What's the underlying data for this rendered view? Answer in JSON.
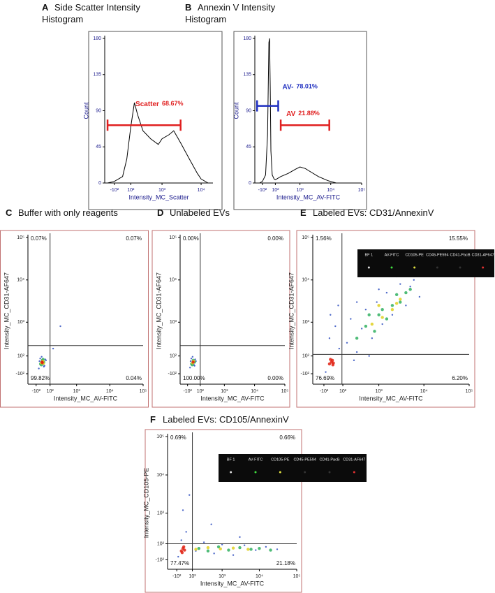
{
  "chart_data": [
    {
      "type": "line",
      "panel": "A",
      "title": "Side Scatter Intensity Histogram",
      "xlabel": "Intensity_MC_Scatter",
      "ylabel": "Count",
      "xscale": "biexponential",
      "x": [
        -200,
        -100,
        0,
        50,
        100,
        150,
        200,
        300,
        500,
        800,
        1000,
        1500,
        2000,
        3000,
        5000,
        8000,
        10000,
        15000
      ],
      "values": [
        0,
        2,
        8,
        30,
        70,
        100,
        85,
        65,
        55,
        48,
        55,
        60,
        65,
        50,
        30,
        12,
        5,
        0
      ],
      "color": "#000000",
      "xlim": [
        -250,
        20000
      ],
      "ylim": [
        0,
        180
      ],
      "xticks": [
        {
          "value": -100,
          "label": "-10²"
        },
        {
          "value": 100,
          "label": "10²"
        },
        {
          "value": 1000,
          "label": "10³"
        },
        {
          "value": 10000,
          "label": "10⁴"
        }
      ],
      "yticks": [
        0,
        45,
        90,
        135,
        180
      ],
      "gates": [
        {
          "name": "Scatter",
          "label": "68.67%",
          "value": 68.67,
          "range": [
            -200,
            3000
          ],
          "y": 72,
          "color": "#e02020"
        }
      ]
    },
    {
      "type": "line",
      "panel": "B",
      "title": "Annexin V Intensity Histogram",
      "xlabel": "Intensity_MC_AV-FITC",
      "ylabel": "Count",
      "xscale": "biexponential",
      "x": [
        -150,
        -100,
        -50,
        -20,
        0,
        10,
        20,
        30,
        50,
        80,
        100,
        200,
        400,
        700,
        1000,
        1500,
        2000,
        4000,
        8000,
        15000
      ],
      "values": [
        0,
        2,
        10,
        60,
        175,
        180,
        120,
        40,
        10,
        5,
        4,
        8,
        12,
        17,
        20,
        18,
        15,
        8,
        3,
        0
      ],
      "color": "#000000",
      "xlim": [
        -250,
        100000
      ],
      "ylim": [
        0,
        180
      ],
      "xticks": [
        {
          "value": -100,
          "label": "-10²"
        },
        {
          "value": 100,
          "label": "10²"
        },
        {
          "value": 1000,
          "label": "10³"
        },
        {
          "value": 10000,
          "label": "10⁴"
        },
        {
          "value": 100000,
          "label": "10⁵"
        }
      ],
      "yticks": [
        0,
        45,
        90,
        135,
        180
      ],
      "gates": [
        {
          "name": "AV-",
          "label": "78.01%",
          "value": 78.01,
          "range": [
            -200,
            150
          ],
          "y": 96,
          "color": "#2030c0"
        },
        {
          "name": "AV",
          "label": "21.88%",
          "value": 21.88,
          "range": [
            200,
            9000
          ],
          "y": 72,
          "color": "#e02020"
        }
      ]
    },
    {
      "type": "scatter",
      "panel": "C",
      "title": "Buffer with only reagents",
      "xlabel": "Intensity_MC_AV-FITC",
      "ylabel": "Intensity_MC_CD31-AF647",
      "xscale": "biexponential",
      "yscale": "biexponential",
      "xlim": [
        -250,
        100000
      ],
      "ylim": [
        -250,
        100000
      ],
      "xticks": [
        {
          "value": -100,
          "label": "-10²"
        },
        {
          "value": 100,
          "label": "10²"
        },
        {
          "value": 1000,
          "label": "10³"
        },
        {
          "value": 10000,
          "label": "10⁴"
        },
        {
          "value": 100000,
          "label": "10⁵"
        }
      ],
      "yticks": [
        {
          "value": -100,
          "label": "-10²"
        },
        {
          "value": 100,
          "label": "10²"
        },
        {
          "value": 1000,
          "label": "10³"
        },
        {
          "value": 10000,
          "label": "10⁴"
        },
        {
          "value": 100000,
          "label": "10⁵"
        }
      ],
      "quadrant_x": 100,
      "quadrant_y": 250,
      "quadrants": [
        {
          "value": 0.07,
          "label": "0.07%"
        },
        {
          "value": 0.07,
          "label": "0.07%"
        },
        {
          "value": 99.82,
          "label": "99.82%"
        },
        {
          "value": 0.04,
          "label": "0.04%"
        }
      ],
      "series": [
        {
          "color": "#3050c0",
          "x": [
            -60,
            -40,
            10,
            30,
            -20,
            0,
            20,
            -50,
            40,
            150,
            300
          ],
          "y": [
            -40,
            70,
            -20,
            60,
            90,
            0,
            -10,
            40,
            50,
            200,
            800
          ]
        },
        {
          "color": "#30b060",
          "x": [
            -35,
            -10,
            10,
            -25,
            0
          ],
          "y": [
            10,
            50,
            30,
            0,
            60
          ]
        },
        {
          "color": "#e0d020",
          "x": [
            -25,
            -5,
            5
          ],
          "y": [
            20,
            40,
            15
          ]
        },
        {
          "color": "#e02010",
          "x": [
            -15,
            -10
          ],
          "y": [
            30,
            25
          ]
        }
      ]
    },
    {
      "type": "scatter",
      "panel": "D",
      "title": "Unlabeled EVs",
      "xlabel": "Intensity_MC_AV-FITC",
      "ylabel": "Intensity_MC_CD31-AF647",
      "xscale": "biexponential",
      "yscale": "biexponential",
      "xlim": [
        -250,
        100000
      ],
      "ylim": [
        -250,
        100000
      ],
      "xticks": [
        {
          "value": -100,
          "label": "-10²"
        },
        {
          "value": 100,
          "label": "10²"
        },
        {
          "value": 1000,
          "label": "10³"
        },
        {
          "value": 10000,
          "label": "10⁴"
        },
        {
          "value": 100000,
          "label": "10⁵"
        }
      ],
      "yticks": [
        {
          "value": -100,
          "label": "-10²"
        },
        {
          "value": 100,
          "label": "10²"
        },
        {
          "value": 1000,
          "label": "10³"
        },
        {
          "value": 10000,
          "label": "10⁴"
        },
        {
          "value": 100000,
          "label": "10⁵"
        }
      ],
      "quadrant_x": 100,
      "quadrant_y": 250,
      "quadrants": [
        {
          "value": 0,
          "label": "0.00%"
        },
        {
          "value": 0,
          "label": "0.00%"
        },
        {
          "value": 100,
          "label": "100.00%"
        },
        {
          "value": 0,
          "label": "0.00%"
        }
      ],
      "series": [
        {
          "color": "#3050c0",
          "x": [
            -60,
            -40,
            10,
            20,
            -20,
            0,
            -50,
            30
          ],
          "y": [
            -30,
            70,
            -10,
            60,
            90,
            0,
            40,
            40
          ]
        },
        {
          "color": "#30b060",
          "x": [
            -35,
            -10,
            10,
            -25
          ],
          "y": [
            10,
            50,
            30,
            0
          ]
        },
        {
          "color": "#e0d020",
          "x": [
            -20,
            -5
          ],
          "y": [
            20,
            40
          ]
        },
        {
          "color": "#e02010",
          "x": [
            -12
          ],
          "y": [
            30
          ]
        }
      ]
    },
    {
      "type": "scatter",
      "panel": "E",
      "title": "Labeled EVs: CD31/AnnexinV",
      "xlabel": "Intensity_MC_AV-FITC",
      "ylabel": "Intensity_MC_CD31-AF647",
      "xscale": "biexponential",
      "yscale": "biexponential",
      "xlim": [
        -250,
        100000
      ],
      "ylim": [
        -250,
        100000
      ],
      "xticks": [
        {
          "value": -100,
          "label": "-10²"
        },
        {
          "value": 100,
          "label": "10²"
        },
        {
          "value": 1000,
          "label": "10³"
        },
        {
          "value": 10000,
          "label": "10⁴"
        },
        {
          "value": 100000,
          "label": "10⁵"
        }
      ],
      "yticks": [
        {
          "value": -100,
          "label": "-10²"
        },
        {
          "value": 100,
          "label": "10²"
        },
        {
          "value": 1000,
          "label": "10³"
        },
        {
          "value": 10000,
          "label": "10⁴"
        },
        {
          "value": 100000,
          "label": "10⁵"
        }
      ],
      "quadrant_x": 90,
      "quadrant_y": 120,
      "quadrants": [
        {
          "value": 1.56,
          "label": "1.56%"
        },
        {
          "value": 15.55,
          "label": "15.55%"
        },
        {
          "value": 76.69,
          "label": "76.69%"
        },
        {
          "value": 6.2,
          "label": "6.20%"
        }
      ],
      "image_channels": [
        "BF 1",
        "AV-FITC",
        "CD105-PE",
        "CD45-PE594",
        "CD41-PacB",
        "CD31-AF647"
      ],
      "series": [
        {
          "color": "#3050c0",
          "x": [
            -80,
            -40,
            20,
            60,
            150,
            200,
            300,
            400,
            500,
            700,
            900,
            1200,
            1500,
            2000,
            3000,
            4000,
            6000,
            8000,
            300,
            1000,
            2500,
            5000,
            -30,
            50,
            600,
            250
          ],
          "y": [
            -80,
            400,
            800,
            200,
            300,
            1200,
            150,
            700,
            2000,
            400,
            3000,
            900,
            5000,
            1500,
            8000,
            2500,
            10000,
            4000,
            3000,
            6000,
            12000,
            7000,
            1500,
            2500,
            100,
            50
          ]
        },
        {
          "color": "#30b060",
          "x": [
            300,
            500,
            800,
            1000,
            1500,
            2000,
            3000,
            4000,
            600,
            1200,
            2500,
            5000
          ],
          "y": [
            400,
            800,
            600,
            1500,
            1200,
            2500,
            3000,
            5000,
            1500,
            2000,
            4500,
            6000
          ]
        },
        {
          "color": "#e0d020",
          "x": [
            700,
            1200,
            2000,
            3000,
            1000,
            2500
          ],
          "y": [
            900,
            1300,
            2000,
            3500,
            2500,
            2800
          ]
        },
        {
          "color": "#e02010",
          "x": [
            -40,
            -20,
            -10,
            0,
            -30,
            -5
          ],
          "y": [
            10,
            30,
            50,
            20,
            60,
            0
          ]
        }
      ]
    },
    {
      "type": "scatter",
      "panel": "F",
      "title": "Labeled EVs: CD105/AnnexinV",
      "xlabel": "Intensity_MC_AV-FITC",
      "ylabel": "Intensity_MC_CD105-PE",
      "xscale": "biexponential",
      "yscale": "biexponential",
      "xlim": [
        -250,
        100000
      ],
      "ylim": [
        -250,
        100000
      ],
      "xticks": [
        {
          "value": -100,
          "label": "-10²"
        },
        {
          "value": 100,
          "label": "10²"
        },
        {
          "value": 1000,
          "label": "10³"
        },
        {
          "value": 10000,
          "label": "10⁴"
        },
        {
          "value": 100000,
          "label": "10⁵"
        }
      ],
      "yticks": [
        {
          "value": -100,
          "label": "-10²"
        },
        {
          "value": 100,
          "label": "10²"
        },
        {
          "value": 1000,
          "label": "10³"
        },
        {
          "value": 10000,
          "label": "10⁴"
        },
        {
          "value": 100000,
          "label": "10⁵"
        }
      ],
      "quadrant_x": 100,
      "quadrant_y": 100,
      "quadrants": [
        {
          "value": 0.69,
          "label": "0.69%"
        },
        {
          "value": 0.66,
          "label": "0.66%"
        },
        {
          "value": 77.47,
          "label": "77.47%"
        },
        {
          "value": 21.18,
          "label": "21.18%"
        }
      ],
      "image_channels": [
        "BF 1",
        "AV-FITC",
        "CD105-PE",
        "CD45-PE594",
        "CD41-PacB",
        "CD31-AF647"
      ],
      "series": [
        {
          "color": "#3050c0",
          "x": [
            -80,
            -40,
            20,
            150,
            300,
            600,
            1000,
            2000,
            4000,
            8000,
            15000,
            30000,
            500,
            3000,
            -20,
            60
          ],
          "y": [
            -60,
            150,
            300,
            10,
            120,
            -20,
            90,
            -40,
            80,
            20,
            60,
            30,
            500,
            200,
            1200,
            3000
          ]
        },
        {
          "color": "#30b060",
          "x": [
            200,
            400,
            800,
            1500,
            3000,
            6000,
            10000,
            20000
          ],
          "y": [
            40,
            10,
            60,
            20,
            50,
            30,
            40,
            20
          ]
        },
        {
          "color": "#e0d020",
          "x": [
            150,
            400,
            900,
            2000,
            5000
          ],
          "y": [
            30,
            50,
            35,
            45,
            30
          ]
        },
        {
          "color": "#e02010",
          "x": [
            -40,
            -20,
            -10,
            0,
            -30
          ],
          "y": [
            10,
            40,
            60,
            20,
            -10
          ]
        }
      ]
    }
  ]
}
